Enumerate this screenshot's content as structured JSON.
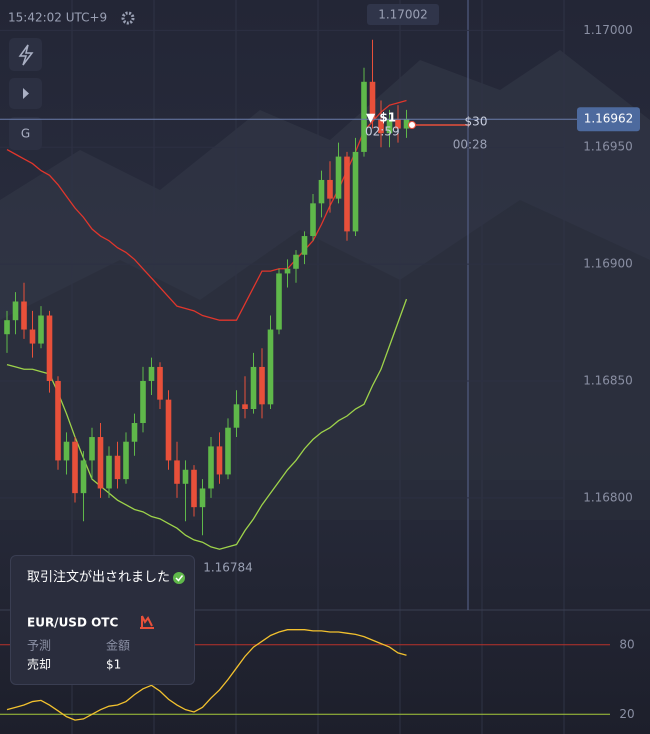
{
  "header": {
    "time": "15:42:02 UTC+9",
    "g_button": "G"
  },
  "chart_data": [
    {
      "type": "candlestick",
      "open": [
        1.1687,
        1.16876,
        1.16884,
        1.16872,
        1.16866,
        1.16878,
        1.1685,
        1.16816,
        1.16824,
        1.16802,
        1.16816,
        1.16826,
        1.16804,
        1.16818,
        1.16808,
        1.16824,
        1.16832,
        1.1685,
        1.16856,
        1.16842,
        1.16816,
        1.16806,
        1.16812,
        1.16796,
        1.16804,
        1.16822,
        1.1681,
        1.1683,
        1.1684,
        1.16838,
        1.16856,
        1.1684,
        1.16872,
        1.16896,
        1.16898,
        1.16904,
        1.16912,
        1.16926,
        1.16936,
        1.16928,
        1.16946,
        1.16914,
        1.16948,
        1.16978,
        1.16962,
        1.16956,
        1.16962,
        1.16958
      ],
      "high": [
        1.1688,
        1.16888,
        1.16892,
        1.1688,
        1.16882,
        1.1688,
        1.16852,
        1.16828,
        1.16826,
        1.1682,
        1.1683,
        1.16832,
        1.16822,
        1.16824,
        1.16828,
        1.16836,
        1.16856,
        1.1686,
        1.16858,
        1.16846,
        1.16824,
        1.16816,
        1.16814,
        1.16808,
        1.16826,
        1.16828,
        1.16834,
        1.16846,
        1.16852,
        1.16862,
        1.16864,
        1.16878,
        1.16898,
        1.16902,
        1.16906,
        1.16914,
        1.1693,
        1.1694,
        1.16944,
        1.16952,
        1.16948,
        1.16954,
        1.16984,
        1.16996,
        1.1697,
        1.16966,
        1.16968,
        1.16966
      ],
      "low": [
        1.16862,
        1.1687,
        1.16868,
        1.1686,
        1.16864,
        1.16845,
        1.16812,
        1.1681,
        1.16798,
        1.1679,
        1.16808,
        1.168,
        1.168,
        1.16804,
        1.16806,
        1.16818,
        1.16828,
        1.16844,
        1.16838,
        1.16812,
        1.168,
        1.1679,
        1.16792,
        1.16784,
        1.168,
        1.16806,
        1.16808,
        1.16826,
        1.16834,
        1.16836,
        1.16834,
        1.16838,
        1.1687,
        1.1689,
        1.16892,
        1.169,
        1.1691,
        1.1692,
        1.16922,
        1.16926,
        1.1691,
        1.16912,
        1.16946,
        1.16958,
        1.1695,
        1.1695,
        1.16952,
        1.16954
      ],
      "close": [
        1.16876,
        1.16884,
        1.16872,
        1.16866,
        1.16878,
        1.1685,
        1.16816,
        1.16824,
        1.16802,
        1.16816,
        1.16826,
        1.16804,
        1.16818,
        1.16808,
        1.16824,
        1.16832,
        1.1685,
        1.16856,
        1.16842,
        1.16816,
        1.16806,
        1.16812,
        1.16796,
        1.16804,
        1.16822,
        1.1681,
        1.1683,
        1.1684,
        1.16838,
        1.16856,
        1.1684,
        1.16872,
        1.16896,
        1.16898,
        1.16904,
        1.16912,
        1.16926,
        1.16936,
        1.16928,
        1.16946,
        1.16914,
        1.16948,
        1.16978,
        1.16962,
        1.16956,
        1.16962,
        1.16958,
        1.16962
      ],
      "up_color": "#5fb84a",
      "down_color": "#e8503a",
      "series": [
        {
          "color": "#e0362c",
          "values": [
            1.16949,
            1.16947,
            1.16945,
            1.16943,
            1.1694,
            1.16938,
            1.16934,
            1.16929,
            1.16924,
            1.1692,
            1.16915,
            1.16912,
            1.1691,
            1.16907,
            1.16905,
            1.16902,
            1.16898,
            1.16894,
            1.1689,
            1.16886,
            1.16882,
            1.16881,
            1.1688,
            1.16878,
            1.16877,
            1.16876,
            1.16876,
            1.16876,
            1.16883,
            1.1689,
            1.16897,
            1.16897,
            1.16898,
            1.16898,
            1.16902,
            1.16906,
            1.1691,
            1.16917,
            1.16925,
            1.16932,
            1.1694,
            1.16948,
            1.16957,
            1.16961,
            1.16965,
            1.16968,
            1.16969,
            1.1697
          ]
        },
        {
          "color": "#9ed34a",
          "values": [
            1.16857,
            1.16856,
            1.16855,
            1.16855,
            1.16854,
            1.16853,
            1.16845,
            1.16836,
            1.16826,
            1.16817,
            1.16808,
            1.16805,
            1.16802,
            1.16799,
            1.16797,
            1.16795,
            1.16794,
            1.16792,
            1.16791,
            1.16789,
            1.16787,
            1.16784,
            1.16782,
            1.16781,
            1.16779,
            1.16778,
            1.16779,
            1.1678,
            1.16786,
            1.16791,
            1.16797,
            1.16802,
            1.16807,
            1.16812,
            1.16816,
            1.16821,
            1.16825,
            1.16828,
            1.1683,
            1.16833,
            1.16835,
            1.16838,
            1.1684,
            1.16848,
            1.16855,
            1.16865,
            1.16875,
            1.16885
          ]
        }
      ],
      "ylim": [
        1.16752,
        1.17013
      ],
      "yticks": [
        {
          "value": 1.17,
          "label": "1.17000"
        },
        {
          "value": 1.1695,
          "label": "1.16950"
        },
        {
          "value": 1.169,
          "label": "1.16900"
        },
        {
          "value": 1.1685,
          "label": "1.16850"
        },
        {
          "value": 1.168,
          "label": "1.16800"
        }
      ],
      "grid": true,
      "crosshair_price": 1.17002,
      "current_price": 1.16962,
      "low_label": 1.16784
    },
    {
      "type": "line",
      "series": [
        {
          "color": "#f2c12e",
          "values": [
            24,
            26,
            28,
            31,
            32,
            28,
            23,
            18,
            15,
            16,
            20,
            24,
            27,
            28,
            31,
            37,
            42,
            45,
            40,
            33,
            28,
            24,
            22,
            26,
            34,
            41,
            50,
            60,
            70,
            78,
            83,
            88,
            91,
            93,
            93,
            93,
            92,
            92,
            91,
            91,
            90,
            89,
            87,
            84,
            81,
            78,
            73,
            71
          ]
        }
      ],
      "ylim": [
        3,
        110
      ],
      "yticks": [
        20,
        80
      ],
      "grid_colors": [
        "#a6c93a",
        "#b8322a"
      ]
    }
  ],
  "trade": {
    "direction_amount": "▼ $1",
    "timer": "02:59",
    "payout": "$30",
    "countdown": "00:28"
  },
  "notification": {
    "title": "取引注文が出されました",
    "asset": "EUR/USD OTC",
    "forecast_label": "予測",
    "amount_label": "金額",
    "forecast": "売却",
    "amount": "$1"
  }
}
